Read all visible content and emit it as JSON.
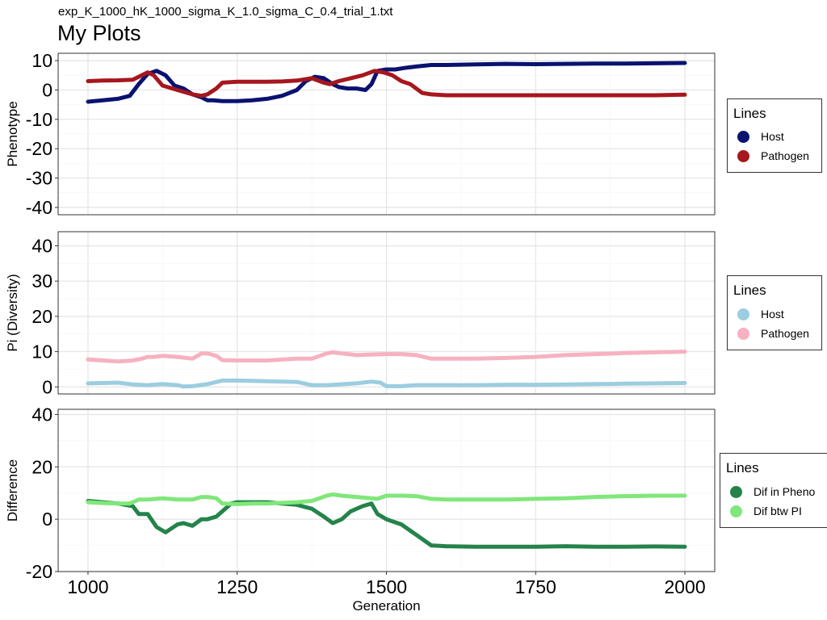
{
  "subtitle": "exp_K_1000_hK_1000_sigma_K_1.0_sigma_C_0.4_trial_1.txt",
  "title": "My Plots",
  "xlabel": "Generation",
  "chart_data": [
    {
      "type": "line",
      "ylabel": "Phenotype",
      "xlim": [
        950,
        2050
      ],
      "ylim": [
        -42.5,
        12.5
      ],
      "yticks": [
        10,
        0,
        -10,
        -20,
        -30,
        -40
      ],
      "grid": true,
      "legend": {
        "title": "Lines",
        "placement": "right"
      },
      "series": [
        {
          "name": "Host",
          "color": "#0a1270",
          "x": [
            1000,
            1025,
            1050,
            1070,
            1085,
            1100,
            1115,
            1130,
            1145,
            1160,
            1175,
            1190,
            1200,
            1210,
            1225,
            1250,
            1275,
            1300,
            1325,
            1350,
            1365,
            1380,
            1395,
            1410,
            1420,
            1435,
            1450,
            1465,
            1475,
            1485,
            1500,
            1515,
            1530,
            1550,
            1575,
            1600,
            1650,
            1700,
            1750,
            1800,
            1850,
            1900,
            1950,
            2000
          ],
          "y": [
            -4,
            -3.5,
            -3,
            -2,
            2,
            5.5,
            6.5,
            5,
            1.5,
            0.5,
            -1.5,
            -2.5,
            -3.5,
            -3.5,
            -3.8,
            -3.8,
            -3.5,
            -3,
            -2,
            0,
            3,
            4.5,
            4,
            2,
            1,
            0.5,
            0.5,
            0,
            2,
            6.5,
            7,
            7,
            7.5,
            8,
            8.5,
            8.5,
            8.7,
            8.9,
            8.8,
            8.9,
            9,
            9,
            9.1,
            9.2
          ]
        },
        {
          "name": "Pathogen",
          "color": "#a6171e",
          "x": [
            1000,
            1025,
            1050,
            1075,
            1090,
            1100,
            1110,
            1125,
            1150,
            1175,
            1190,
            1200,
            1215,
            1225,
            1250,
            1275,
            1300,
            1325,
            1350,
            1375,
            1395,
            1405,
            1420,
            1440,
            1460,
            1480,
            1495,
            1510,
            1525,
            1540,
            1560,
            1575,
            1600,
            1650,
            1700,
            1750,
            1800,
            1850,
            1900,
            1950,
            2000
          ],
          "y": [
            3,
            3.2,
            3.3,
            3.5,
            5,
            6,
            5,
            1.5,
            0,
            -1.5,
            -2,
            -1.5,
            0.5,
            2.5,
            2.8,
            2.8,
            2.8,
            2.9,
            3.2,
            4,
            2.5,
            2,
            3,
            4,
            5,
            6.5,
            6,
            5,
            3,
            2,
            -1,
            -1.5,
            -1.8,
            -1.8,
            -1.8,
            -1.8,
            -1.8,
            -1.8,
            -1.8,
            -1.8,
            -1.6
          ]
        }
      ]
    },
    {
      "type": "line",
      "ylabel": "Pi (Diversity)",
      "xlim": [
        950,
        2050
      ],
      "ylim": [
        -2,
        44
      ],
      "yticks": [
        40,
        30,
        20,
        10,
        0
      ],
      "grid": true,
      "legend": {
        "title": "Lines",
        "placement": "right"
      },
      "series": [
        {
          "name": "Host",
          "color": "#9ccde0",
          "x": [
            1000,
            1050,
            1075,
            1100,
            1125,
            1150,
            1160,
            1175,
            1200,
            1225,
            1250,
            1300,
            1350,
            1375,
            1400,
            1450,
            1475,
            1490,
            1500,
            1525,
            1550,
            1600,
            1650,
            1700,
            1750,
            1800,
            1850,
            1900,
            1950,
            2000
          ],
          "y": [
            1,
            1.2,
            0.7,
            0.5,
            0.8,
            0.5,
            0.1,
            0.2,
            0.8,
            1.8,
            1.8,
            1.6,
            1.4,
            0.5,
            0.5,
            1,
            1.5,
            1.2,
            0.2,
            0.2,
            0.5,
            0.5,
            0.5,
            0.6,
            0.6,
            0.7,
            0.8,
            0.9,
            1,
            1.1
          ]
        },
        {
          "name": "Pathogen",
          "color": "#f7b1c0",
          "x": [
            1000,
            1025,
            1050,
            1075,
            1090,
            1100,
            1110,
            1125,
            1150,
            1175,
            1190,
            1200,
            1215,
            1225,
            1250,
            1300,
            1350,
            1375,
            1400,
            1410,
            1425,
            1450,
            1475,
            1500,
            1525,
            1550,
            1575,
            1600,
            1650,
            1700,
            1750,
            1800,
            1850,
            1900,
            1950,
            2000
          ],
          "y": [
            7.8,
            7.5,
            7.2,
            7.5,
            8,
            8.5,
            8.5,
            8.8,
            8.5,
            8,
            9.5,
            9.5,
            8.8,
            7.6,
            7.5,
            7.5,
            8,
            8,
            9.5,
            9.8,
            9.5,
            9,
            9.2,
            9.3,
            9.3,
            9,
            8,
            8,
            8,
            8.2,
            8.5,
            9,
            9.3,
            9.6,
            9.8,
            10
          ]
        }
      ]
    },
    {
      "type": "line",
      "ylabel": "Difference",
      "xlim": [
        950,
        2050
      ],
      "ylim": [
        -20,
        42
      ],
      "yticks": [
        40,
        20,
        0,
        -20
      ],
      "grid": true,
      "legend": {
        "title": "Lines",
        "placement": "right"
      },
      "series": [
        {
          "name": "Dif in Pheno",
          "color": "#24834a",
          "x": [
            1000,
            1025,
            1050,
            1075,
            1085,
            1100,
            1115,
            1130,
            1150,
            1160,
            1175,
            1190,
            1200,
            1215,
            1225,
            1240,
            1250,
            1275,
            1300,
            1325,
            1350,
            1375,
            1395,
            1410,
            1425,
            1440,
            1460,
            1475,
            1485,
            1500,
            1525,
            1550,
            1575,
            1600,
            1650,
            1700,
            1750,
            1800,
            1850,
            1900,
            1950,
            2000
          ],
          "y": [
            7,
            6.5,
            6,
            5,
            2,
            2,
            -3,
            -5,
            -2,
            -1.5,
            -2.5,
            0,
            0,
            1,
            3,
            6,
            6.5,
            6.5,
            6.5,
            6,
            5.5,
            4,
            1,
            -1.5,
            0,
            3,
            5,
            6,
            2,
            0,
            -2,
            -6,
            -10,
            -10.3,
            -10.5,
            -10.5,
            -10.5,
            -10.3,
            -10.5,
            -10.5,
            -10.4,
            -10.5
          ]
        },
        {
          "name": "Dif btw PI",
          "color": "#80e77a",
          "x": [
            1000,
            1025,
            1050,
            1070,
            1085,
            1100,
            1125,
            1150,
            1175,
            1190,
            1200,
            1215,
            1225,
            1250,
            1275,
            1300,
            1350,
            1375,
            1400,
            1410,
            1425,
            1450,
            1475,
            1485,
            1500,
            1525,
            1550,
            1575,
            1600,
            1650,
            1700,
            1750,
            1800,
            1850,
            1900,
            1950,
            2000
          ],
          "y": [
            6.5,
            6.2,
            6,
            6,
            7.5,
            7.5,
            8,
            7.5,
            7.5,
            8.5,
            8.5,
            8,
            6,
            5.8,
            6,
            6,
            6.5,
            7,
            9,
            9.5,
            9,
            8.5,
            8,
            7.8,
            9,
            9,
            8.8,
            7.8,
            7.5,
            7.5,
            7.5,
            7.8,
            8,
            8.5,
            8.8,
            9,
            9
          ]
        }
      ]
    }
  ]
}
